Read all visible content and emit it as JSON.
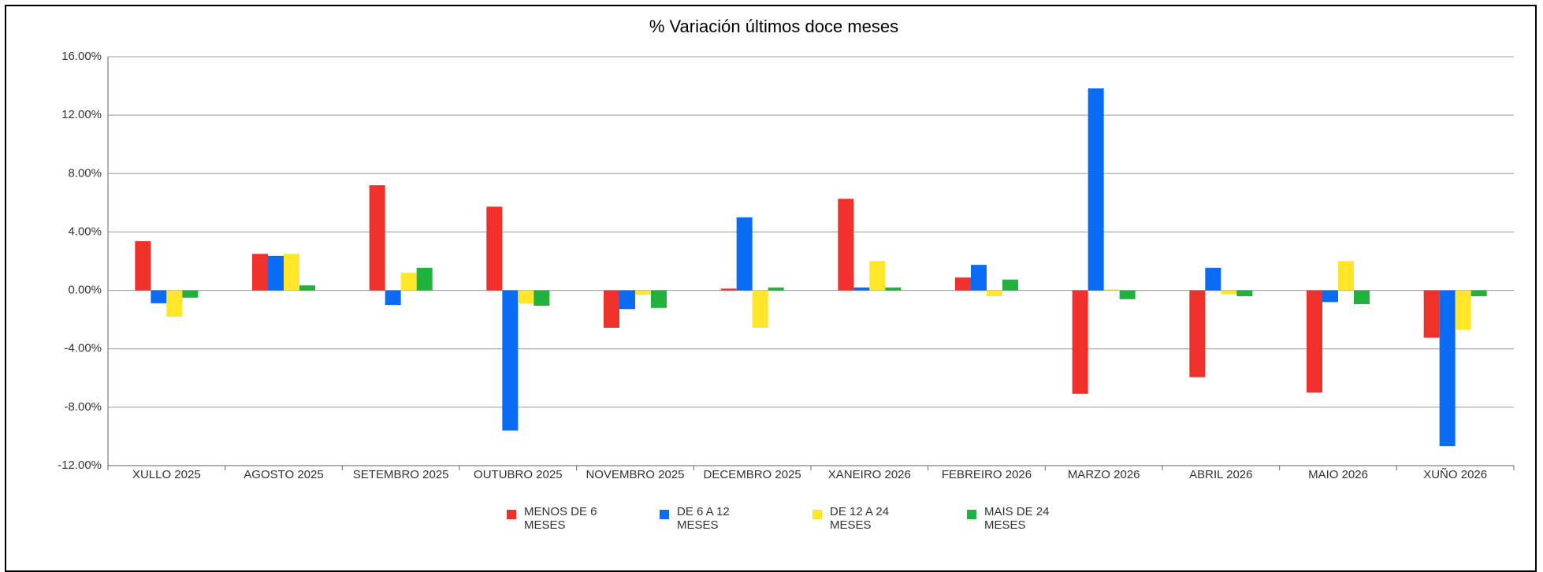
{
  "chart_data": {
    "type": "bar",
    "title": "% Variación últimos doce meses",
    "categories": [
      "XULLO 2025",
      "AGOSTO 2025",
      "SETEMBRO 2025",
      "OUTUBRO 2025",
      "NOVEMBRO 2025",
      "DECEMBRO 2025",
      "XANEIRO 2026",
      "FEBREIRO 2026",
      "MARZO 2026",
      "ABRIL 2026",
      "MAIO 2026",
      "XUÑO 2026"
    ],
    "series": [
      {
        "name": "MENOS DE 6 MESES",
        "color": "#f0302a",
        "values": [
          3.37,
          2.5,
          7.2,
          5.73,
          -2.56,
          0.12,
          6.27,
          0.88,
          -7.08,
          -5.94,
          -7.0,
          -3.24
        ]
      },
      {
        "name": "DE 6 A 12 MESES",
        "color": "#0a6cf5",
        "values": [
          -0.88,
          2.36,
          -1.0,
          -9.6,
          -1.28,
          5.0,
          0.2,
          1.75,
          13.83,
          1.55,
          -0.8,
          -10.66
        ]
      },
      {
        "name": "DE 12 A 24 MESES",
        "color": "#ffe629",
        "values": [
          -1.8,
          2.5,
          1.2,
          -0.9,
          -0.3,
          -2.56,
          2.02,
          -0.4,
          0.07,
          -0.27,
          2.02,
          -2.7
        ]
      },
      {
        "name": "MAIS DE 24 MESES",
        "color": "#1fb23c",
        "values": [
          -0.5,
          0.34,
          1.55,
          -1.05,
          -1.2,
          0.2,
          0.2,
          0.74,
          -0.6,
          -0.4,
          -0.94,
          -0.4
        ]
      }
    ],
    "ylim": [
      -12,
      16
    ],
    "yticks": [
      {
        "value": -12,
        "label": "-12.00%"
      },
      {
        "value": -8,
        "label": "-8.00%"
      },
      {
        "value": -4,
        "label": "-4.00%"
      },
      {
        "value": 0,
        "label": "0.00%"
      },
      {
        "value": 4,
        "label": "4.00%"
      },
      {
        "value": 8,
        "label": "8.00%"
      },
      {
        "value": 12,
        "label": "12.00%"
      },
      {
        "value": 16,
        "label": "16.00%"
      }
    ],
    "grid": true,
    "legend": "bottom"
  }
}
